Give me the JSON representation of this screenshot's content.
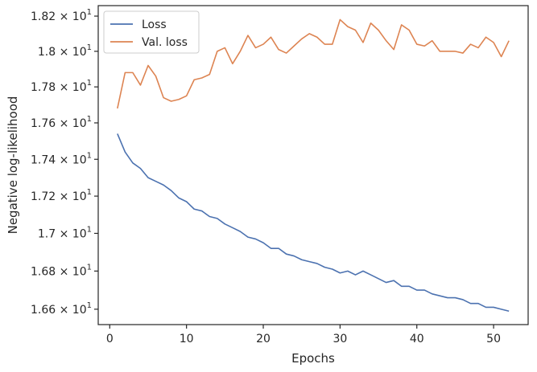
{
  "chart_data": {
    "type": "line",
    "title": "",
    "xlabel": "Epochs",
    "ylabel": "Negative log-likelihood",
    "xlim": [
      -1.5,
      54.5
    ],
    "ylim": [
      16.52,
      18.26
    ],
    "y_scale": "log",
    "grid": false,
    "legend_position": "top-left",
    "x_ticks": [
      0,
      10,
      20,
      30,
      40,
      50
    ],
    "x_tick_labels": [
      "0",
      "10",
      "20",
      "30",
      "40",
      "50"
    ],
    "y_ticks": [
      16.6,
      16.8,
      17.0,
      17.2,
      17.4,
      17.6,
      17.8,
      18.0,
      18.2
    ],
    "y_tick_labels": [
      {
        "mantissa": "1.66",
        "base": "10",
        "exp": "1"
      },
      {
        "mantissa": "1.68",
        "base": "10",
        "exp": "1"
      },
      {
        "mantissa": "1.7",
        "base": "10",
        "exp": "1"
      },
      {
        "mantissa": "1.72",
        "base": "10",
        "exp": "1"
      },
      {
        "mantissa": "1.74",
        "base": "10",
        "exp": "1"
      },
      {
        "mantissa": "1.76",
        "base": "10",
        "exp": "1"
      },
      {
        "mantissa": "1.78",
        "base": "10",
        "exp": "1"
      },
      {
        "mantissa": "1.8",
        "base": "10",
        "exp": "1"
      },
      {
        "mantissa": "1.82",
        "base": "10",
        "exp": "1"
      }
    ],
    "x": [
      1,
      2,
      3,
      4,
      5,
      6,
      7,
      8,
      9,
      10,
      11,
      12,
      13,
      14,
      15,
      16,
      17,
      18,
      19,
      20,
      21,
      22,
      23,
      24,
      25,
      26,
      27,
      28,
      29,
      30,
      31,
      32,
      33,
      34,
      35,
      36,
      37,
      38,
      39,
      40,
      41,
      42,
      43,
      44,
      45,
      46,
      47,
      48,
      49,
      50,
      51,
      52
    ],
    "series": [
      {
        "name": "Loss",
        "color": "#4c72b0",
        "values": [
          17.54,
          17.44,
          17.38,
          17.35,
          17.3,
          17.28,
          17.26,
          17.23,
          17.19,
          17.17,
          17.13,
          17.12,
          17.09,
          17.08,
          17.05,
          17.03,
          17.01,
          16.98,
          16.97,
          16.95,
          16.92,
          16.92,
          16.89,
          16.88,
          16.86,
          16.85,
          16.84,
          16.82,
          16.81,
          16.79,
          16.8,
          16.78,
          16.8,
          16.78,
          16.76,
          16.74,
          16.75,
          16.72,
          16.72,
          16.7,
          16.7,
          16.68,
          16.67,
          16.66,
          16.66,
          16.65,
          16.63,
          16.63,
          16.61,
          16.61,
          16.6,
          16.59
        ]
      },
      {
        "name": "Val. loss",
        "color": "#dd8452",
        "values": [
          17.68,
          17.88,
          17.88,
          17.81,
          17.92,
          17.86,
          17.74,
          17.72,
          17.73,
          17.75,
          17.84,
          17.85,
          17.87,
          18.0,
          18.02,
          17.93,
          18.0,
          18.09,
          18.02,
          18.04,
          18.08,
          18.01,
          17.99,
          18.03,
          18.07,
          18.1,
          18.08,
          18.04,
          18.04,
          18.18,
          18.14,
          18.12,
          18.05,
          18.16,
          18.12,
          18.06,
          18.01,
          18.15,
          18.12,
          18.04,
          18.03,
          18.06,
          18.0,
          18.0,
          18.0,
          17.99,
          18.04,
          18.02,
          18.08,
          18.05,
          17.97,
          18.06
        ]
      }
    ]
  }
}
